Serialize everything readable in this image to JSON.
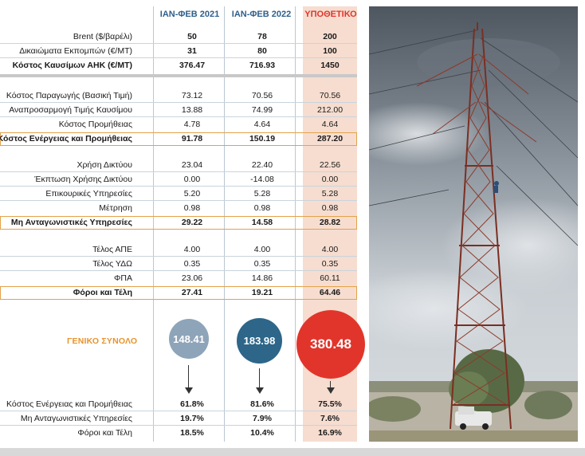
{
  "headers": {
    "col1": "ΙΑΝ-ΦΕΒ 2021",
    "col2": "ΙΑΝ-ΦΕΒ 2022",
    "col3": "ΥΠΟΘΕΤΙΚΟ"
  },
  "fuel": [
    {
      "label": "Brent ($/βαρέλι)",
      "v1": "50",
      "v2": "78",
      "v3": "200"
    },
    {
      "label": "Δικαιώματα Εκπομπών (€/MT)",
      "v1": "31",
      "v2": "80",
      "v3": "100"
    },
    {
      "label": "Κόστος Καυσίμων ΑΗΚ (€/MT)",
      "v1": "376.47",
      "v2": "716.93",
      "v3": "1450"
    }
  ],
  "energy": [
    {
      "label": "Κόστος Παραγωγής (Βασική Τιμή)",
      "v1": "73.12",
      "v2": "70.56",
      "v3": "70.56"
    },
    {
      "label": "Αναπροσαρμογή Τιμής Καυσίμου",
      "v1": "13.88",
      "v2": "74.99",
      "v3": "212.00"
    },
    {
      "label": "Κόστος Προμήθειας",
      "v1": "4.78",
      "v2": "4.64",
      "v3": "4.64"
    },
    {
      "label": "Κόστος Ενέργειας και Προμήθειας",
      "v1": "91.78",
      "v2": "150.19",
      "v3": "287.20"
    }
  ],
  "network": [
    {
      "label": "Χρήση Δικτύου",
      "v1": "23.04",
      "v2": "22.40",
      "v3": "22.56"
    },
    {
      "label": "Έκπτωση Χρήσης Δικτύου",
      "v1": "0.00",
      "v2": "-14.08",
      "v3": "0.00"
    },
    {
      "label": "Επικουρικές Υπηρεσίες",
      "v1": "5.20",
      "v2": "5.28",
      "v3": "5.28"
    },
    {
      "label": "Μέτρηση",
      "v1": "0.98",
      "v2": "0.98",
      "v3": "0.98"
    },
    {
      "label": "Μη Ανταγωνιστικές Υπηρεσίες",
      "v1": "29.22",
      "v2": "14.58",
      "v3": "28.82"
    }
  ],
  "taxes": [
    {
      "label": "Τέλος ΑΠΕ",
      "v1": "4.00",
      "v2": "4.00",
      "v3": "4.00"
    },
    {
      "label": "Τέλος ΥΔΩ",
      "v1": "0.35",
      "v2": "0.35",
      "v3": "0.35"
    },
    {
      "label": "ΦΠΑ",
      "v1": "23.06",
      "v2": "14.86",
      "v3": "60.11"
    },
    {
      "label": "Φόροι και Τέλη",
      "v1": "27.41",
      "v2": "19.21",
      "v3": "64.46"
    }
  ],
  "total": {
    "label": "ΓΕΝΙΚΟ ΣΥΝΟΛΟ",
    "v1": "148.41",
    "v2": "183.98",
    "v3": "380.48"
  },
  "shares": [
    {
      "label": "Κόστος Ενέργειας και Προμήθειας",
      "v1": "61.8%",
      "v2": "81.6%",
      "v3": "75.5%"
    },
    {
      "label": "Μη Ανταγωνιστικές Υπηρεσίες",
      "v1": "19.7%",
      "v2": "7.9%",
      "v3": "7.6%"
    },
    {
      "label": "Φόροι και Τέλη",
      "v1": "18.5%",
      "v2": "10.4%",
      "v3": "16.9%"
    }
  ],
  "colors": {
    "circle_2021": "#8ea4b9",
    "circle_2022": "#2d6689",
    "circle_hyp": "#e1352b",
    "hyp_column_bg": "#f6ddd0",
    "total_label": "#e8932b",
    "box_border": "#e3a24a"
  },
  "photo": {
    "icon": "power-pylon-photo"
  }
}
